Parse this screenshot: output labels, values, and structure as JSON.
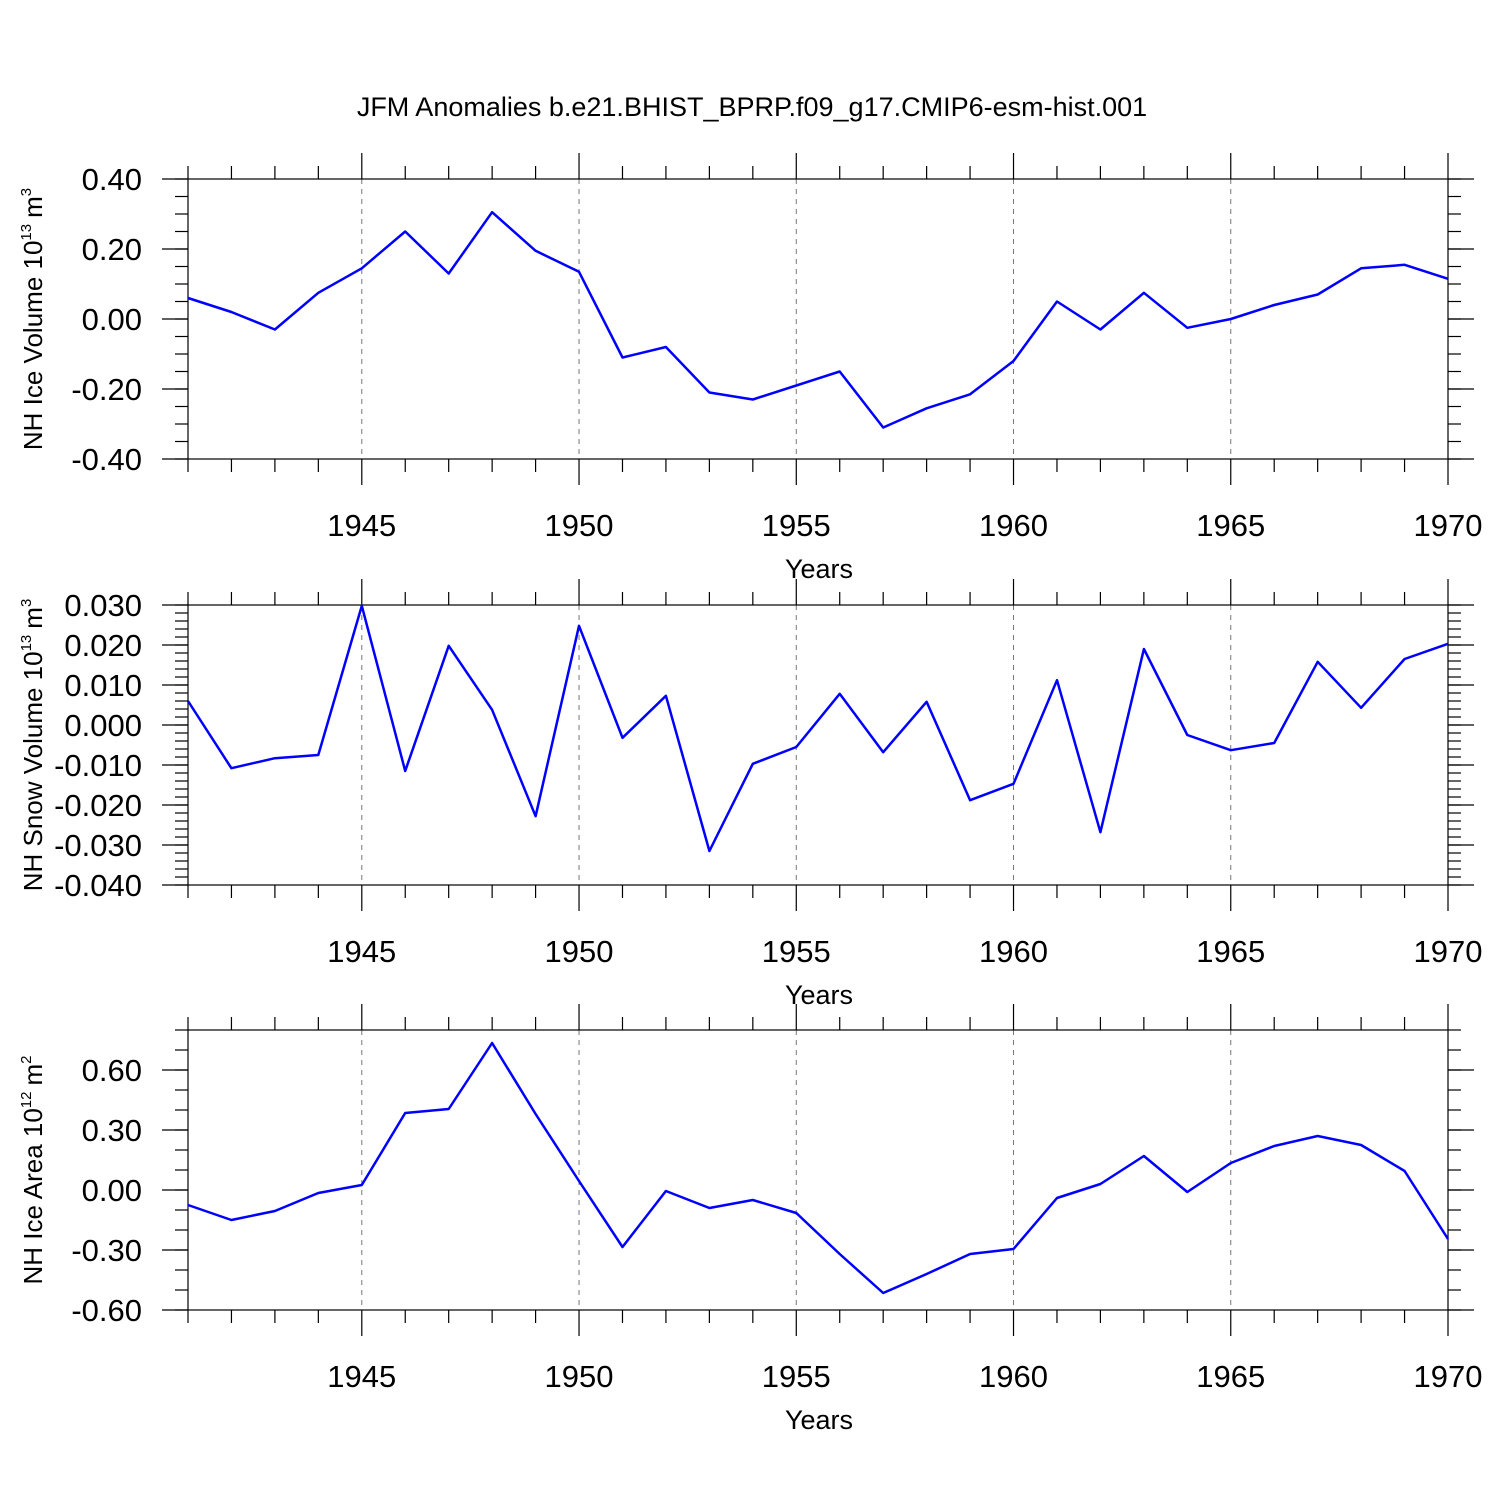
{
  "title": "JFM Anomalies b.e21.BHIST_BPRP.f09_g17.CMIP6-esm-hist.001",
  "chart_data": [
    {
      "type": "line",
      "ylabel": "NH Ice Volume 10",
      "ylabel_exp": "13",
      "ylabel_unit": "m",
      "ylabel_unit_exp": "3",
      "xlabel": "Years",
      "xlim": [
        1941,
        1970
      ],
      "ylim": [
        -0.4,
        0.4
      ],
      "yticks": [
        -0.4,
        -0.2,
        0.0,
        0.2,
        0.4
      ],
      "ytick_labels": [
        "-0.40",
        "-0.20",
        "0.00",
        "0.20",
        "0.40"
      ],
      "yminor_step": 0.05,
      "xticks": [
        1945,
        1950,
        1955,
        1960,
        1965,
        1970
      ],
      "xtick_labels": [
        "1945",
        "1950",
        "1955",
        "1960",
        "1965",
        "1970"
      ],
      "gridlines_x": [
        1945,
        1950,
        1955,
        1960,
        1965
      ],
      "series": [
        {
          "name": "NH Ice Volume",
          "color": "#0000ff",
          "x": [
            1941,
            1942,
            1943,
            1944,
            1945,
            1946,
            1947,
            1948,
            1949,
            1950,
            1951,
            1952,
            1953,
            1954,
            1955,
            1956,
            1957,
            1958,
            1959,
            1960,
            1961,
            1962,
            1963,
            1964,
            1965,
            1966,
            1967,
            1968,
            1969,
            1970
          ],
          "values": [
            0.06,
            0.02,
            -0.03,
            0.075,
            0.145,
            0.25,
            0.13,
            0.305,
            0.195,
            0.135,
            -0.11,
            -0.08,
            -0.21,
            -0.23,
            -0.19,
            -0.15,
            -0.31,
            -0.255,
            -0.215,
            -0.12,
            0.05,
            -0.03,
            0.075,
            -0.025,
            0.0,
            0.04,
            0.07,
            0.145,
            0.155,
            0.115
          ]
        }
      ]
    },
    {
      "type": "line",
      "ylabel": "NH Snow Volume 10",
      "ylabel_exp": "13",
      "ylabel_unit": "m",
      "ylabel_unit_exp": "3",
      "xlabel": "Years",
      "xlim": [
        1941,
        1970
      ],
      "ylim": [
        -0.04,
        0.03
      ],
      "yticks": [
        -0.04,
        -0.03,
        -0.02,
        -0.01,
        0.0,
        0.01,
        0.02,
        0.03
      ],
      "ytick_labels": [
        "-0.040",
        "-0.030",
        "-0.020",
        "-0.010",
        "0.000",
        "0.010",
        "0.020",
        "0.030"
      ],
      "yminor_step": 0.002,
      "xticks": [
        1945,
        1950,
        1955,
        1960,
        1965,
        1970
      ],
      "xtick_labels": [
        "1945",
        "1950",
        "1955",
        "1960",
        "1965",
        "1970"
      ],
      "gridlines_x": [
        1945,
        1950,
        1955,
        1960,
        1965
      ],
      "series": [
        {
          "name": "NH Snow Volume",
          "color": "#0000ff",
          "x": [
            1941,
            1942,
            1943,
            1944,
            1945,
            1946,
            1947,
            1948,
            1949,
            1950,
            1951,
            1952,
            1953,
            1954,
            1955,
            1956,
            1957,
            1958,
            1959,
            1960,
            1961,
            1962,
            1963,
            1964,
            1965,
            1966,
            1967,
            1968,
            1969,
            1970
          ],
          "values": [
            0.006,
            -0.0108,
            -0.0083,
            -0.0075,
            0.0298,
            -0.0115,
            0.0198,
            0.0038,
            -0.0228,
            0.0248,
            -0.0032,
            0.0073,
            -0.0315,
            -0.0097,
            -0.0055,
            0.0078,
            -0.0068,
            0.0058,
            -0.0188,
            -0.0147,
            0.0112,
            -0.0268,
            0.019,
            -0.0025,
            -0.0063,
            -0.0045,
            0.0158,
            0.0043,
            0.0165,
            0.0203
          ]
        }
      ]
    },
    {
      "type": "line",
      "ylabel": "NH Ice Area 10",
      "ylabel_exp": "12",
      "ylabel_unit": "m",
      "ylabel_unit_exp": "2",
      "xlabel": "Years",
      "xlim": [
        1941,
        1970
      ],
      "ylim": [
        -0.6,
        0.8
      ],
      "yticks": [
        -0.6,
        -0.3,
        0.0,
        0.3,
        0.6
      ],
      "ytick_labels": [
        "-0.60",
        "-0.30",
        "0.00",
        "0.30",
        "0.60"
      ],
      "yminor_step": 0.1,
      "xticks": [
        1945,
        1950,
        1955,
        1960,
        1965,
        1970
      ],
      "xtick_labels": [
        "1945",
        "1950",
        "1955",
        "1960",
        "1965",
        "1970"
      ],
      "gridlines_x": [
        1945,
        1950,
        1955,
        1960,
        1965
      ],
      "series": [
        {
          "name": "NH Ice Area",
          "color": "#0000ff",
          "x": [
            1941,
            1942,
            1943,
            1944,
            1945,
            1946,
            1947,
            1948,
            1949,
            1950,
            1951,
            1952,
            1953,
            1954,
            1955,
            1956,
            1957,
            1958,
            1959,
            1960,
            1961,
            1962,
            1963,
            1964,
            1965,
            1966,
            1967,
            1968,
            1969,
            1970
          ],
          "values": [
            -0.075,
            -0.15,
            -0.105,
            -0.015,
            0.025,
            0.385,
            0.405,
            0.735,
            0.38,
            0.045,
            -0.285,
            -0.005,
            -0.09,
            -0.05,
            -0.115,
            -0.32,
            -0.515,
            -0.42,
            -0.32,
            -0.295,
            -0.04,
            0.03,
            0.17,
            -0.01,
            0.135,
            0.22,
            0.27,
            0.225,
            0.095,
            -0.245
          ]
        }
      ]
    }
  ]
}
